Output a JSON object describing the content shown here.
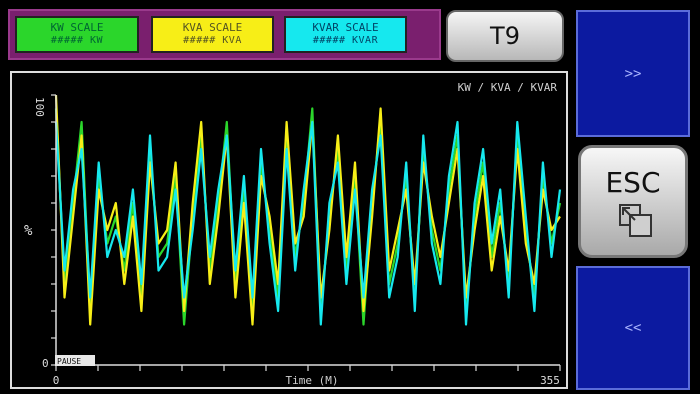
{
  "legend": {
    "kw": {
      "label": "KW SCALE",
      "value": "##### KW",
      "color": "#2bd62b"
    },
    "kva": {
      "label": "KVA SCALE",
      "value": "##### KVA",
      "color": "#f7ee17"
    },
    "kvar": {
      "label": "KVAR SCALE",
      "value": "##### KVAR",
      "color": "#16e8ee"
    }
  },
  "buttons": {
    "t9": "T9",
    "esc": "ESC",
    "next": ">>",
    "prev": "<<"
  },
  "chart_data": {
    "type": "line",
    "title": "KW / KVA / KVAR",
    "xlabel": "Time (M)",
    "ylabel": "%",
    "xlim": [
      0,
      355
    ],
    "ylim": [
      0,
      100
    ],
    "x_tick_labels": [
      "0",
      "355"
    ],
    "y_tick_labels": [
      "0",
      "100"
    ],
    "status_tag": "PAUSE",
    "grid": false,
    "series": [
      {
        "name": "KW",
        "color": "#2bd62b",
        "values": [
          95,
          30,
          60,
          90,
          20,
          70,
          45,
          55,
          35,
          60,
          25,
          80,
          40,
          45,
          70,
          15,
          55,
          85,
          35,
          60,
          90,
          30,
          65,
          20,
          75,
          50,
          25,
          85,
          40,
          60,
          95,
          20,
          55,
          80,
          35,
          70,
          15,
          60,
          90,
          30,
          45,
          70,
          25,
          80,
          50,
          35,
          65,
          85,
          20,
          55,
          75,
          40,
          60,
          30,
          85,
          50,
          25,
          70,
          45,
          60
        ]
      },
      {
        "name": "KVA",
        "color": "#f7ee17",
        "values": [
          100,
          25,
          55,
          85,
          15,
          65,
          50,
          60,
          30,
          55,
          20,
          75,
          45,
          50,
          75,
          20,
          60,
          90,
          30,
          55,
          85,
          25,
          60,
          15,
          70,
          55,
          30,
          90,
          45,
          55,
          90,
          25,
          50,
          85,
          40,
          75,
          20,
          55,
          95,
          35,
          50,
          65,
          30,
          75,
          55,
          40,
          60,
          80,
          25,
          50,
          70,
          35,
          55,
          35,
          80,
          45,
          30,
          65,
          50,
          55
        ]
      },
      {
        "name": "KVAR",
        "color": "#16e8ee",
        "values": [
          90,
          35,
          65,
          80,
          25,
          75,
          40,
          50,
          40,
          65,
          30,
          85,
          35,
          40,
          65,
          25,
          50,
          80,
          40,
          65,
          85,
          35,
          70,
          25,
          80,
          45,
          20,
          80,
          35,
          65,
          90,
          15,
          60,
          75,
          30,
          65,
          25,
          65,
          85,
          25,
          40,
          75,
          20,
          85,
          45,
          30,
          70,
          90,
          15,
          60,
          80,
          45,
          65,
          25,
          90,
          55,
          20,
          75,
          40,
          65
        ]
      }
    ]
  }
}
